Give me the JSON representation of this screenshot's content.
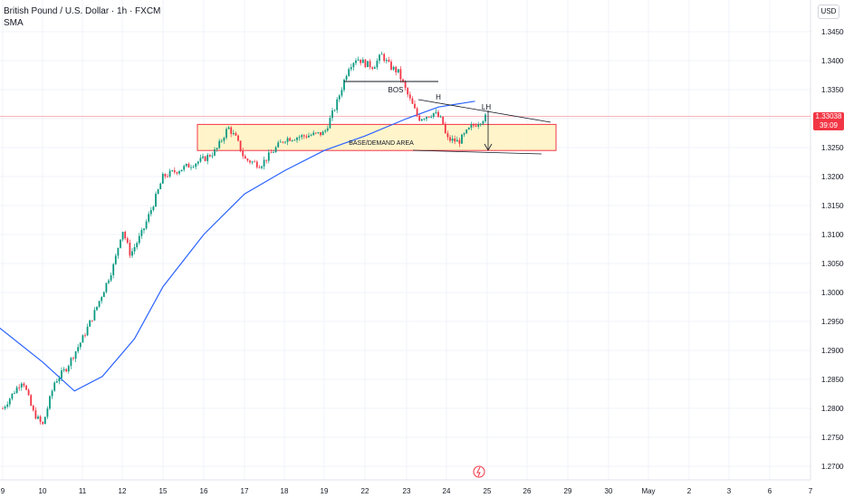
{
  "header": {
    "symbol_title": "British Pound / U.S. Dollar · 1h · FXCM",
    "indicator": "SMA",
    "currency": "USD"
  },
  "last_price": {
    "value": "1.33038",
    "countdown": "39:09",
    "color": "#f23645"
  },
  "chart_data": {
    "type": "candlestick",
    "y_range": [
      1.2675,
      1.3475
    ],
    "y_ticks": [
      "1.34500",
      "1.34000",
      "1.33500",
      "1.33000",
      "1.32500",
      "1.32000",
      "1.31500",
      "1.31000",
      "1.30500",
      "1.30000",
      "1.29500",
      "1.29000",
      "1.28500",
      "1.28000",
      "1.27500",
      "1.27000"
    ],
    "x_ticks": [
      "9",
      "10",
      "11",
      "12",
      "15",
      "16",
      "17",
      "18",
      "19",
      "22",
      "23",
      "24",
      "25",
      "26",
      "29",
      "30",
      "May",
      "2",
      "3",
      "6",
      "7"
    ],
    "up_color": "#089981",
    "down_color": "#f23645",
    "sma_color": "#2962ff",
    "close_path": [
      [
        "9",
        1.28
      ],
      [
        "9.3",
        1.283
      ],
      [
        "9.5",
        1.285
      ],
      [
        "9.75",
        1.2795
      ],
      [
        "10",
        1.277
      ],
      [
        "10.3",
        1.2845
      ],
      [
        "10.6",
        1.287
      ],
      [
        "11",
        1.292
      ],
      [
        "11.3",
        1.2965
      ],
      [
        "11.6",
        1.3015
      ],
      [
        "11.8",
        1.305
      ],
      [
        "12",
        1.311
      ],
      [
        "12.2",
        1.3065
      ],
      [
        "12.5",
        1.3105
      ],
      [
        "12.8",
        1.316
      ],
      [
        "15",
        1.32
      ],
      [
        "15.5",
        1.3215
      ],
      [
        "16",
        1.323
      ],
      [
        "16.3",
        1.3245
      ],
      [
        "16.6",
        1.3285
      ],
      [
        "16.8",
        1.3265
      ],
      [
        "17",
        1.323
      ],
      [
        "17.4",
        1.322
      ],
      [
        "17.8",
        1.325
      ],
      [
        "18",
        1.3265
      ],
      [
        "18.5",
        1.327
      ],
      [
        "19",
        1.3275
      ],
      [
        "19.3",
        1.3325
      ],
      [
        "19.6",
        1.339
      ],
      [
        "19.8",
        1.3405
      ],
      [
        "22",
        1.3395
      ],
      [
        "22.2",
        1.339
      ],
      [
        "22.4",
        1.341
      ],
      [
        "22.6",
        1.339
      ],
      [
        "22.8",
        1.338
      ],
      [
        "23",
        1.3345
      ],
      [
        "23.3",
        1.33
      ],
      [
        "23.5",
        1.3305
      ],
      [
        "23.7",
        1.331
      ],
      [
        "23.9",
        1.3295
      ],
      [
        "24",
        1.3265
      ],
      [
        "24.3",
        1.326
      ],
      [
        "24.6",
        1.3285
      ],
      [
        "24.9",
        1.33
      ],
      [
        "25",
        1.33038
      ]
    ],
    "sma_path": [
      [
        "8.9",
        1.294
      ],
      [
        "10",
        1.288
      ],
      [
        "10.8",
        1.283
      ],
      [
        "11.5",
        1.2855
      ],
      [
        "12.3",
        1.292
      ],
      [
        "15",
        1.301
      ],
      [
        "16",
        1.31
      ],
      [
        "17",
        1.317
      ],
      [
        "18",
        1.321
      ],
      [
        "19",
        1.3245
      ],
      [
        "22",
        1.327
      ],
      [
        "23",
        1.33
      ],
      [
        "23.8",
        1.332
      ],
      [
        "24.7",
        1.333
      ]
    ],
    "annotations": [
      {
        "label": "BOS"
      },
      {
        "label": "H"
      },
      {
        "label": "LH"
      },
      {
        "label": "BASE/DEMAND AREA"
      }
    ],
    "demand_zone": {
      "y_top": 1.329,
      "y_bottom": 1.3245,
      "fill": "#fff3c4",
      "stroke": "#f23645"
    },
    "last_price_line": 1.33038
  }
}
